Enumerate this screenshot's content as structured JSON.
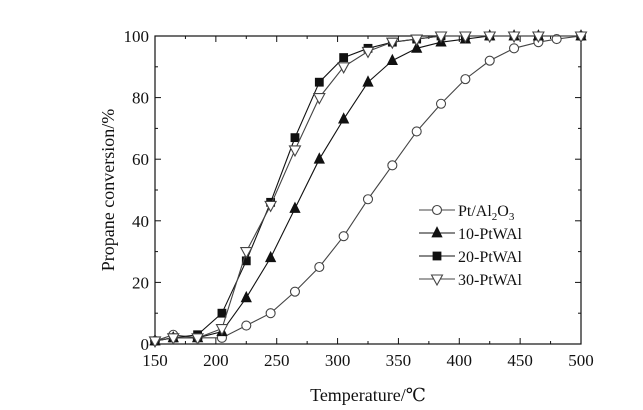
{
  "chart_data": {
    "type": "line",
    "title": "",
    "xlabel": "Temperature/℃",
    "ylabel": "Propane conversion/%",
    "xlim": [
      150,
      500
    ],
    "ylim": [
      0,
      100
    ],
    "xticks": [
      150,
      200,
      250,
      300,
      350,
      400,
      450,
      500
    ],
    "yticks": [
      0,
      20,
      40,
      60,
      80,
      100
    ],
    "grid": false,
    "legend_position": "center-right",
    "series": [
      {
        "name": "Pt/Al2O3",
        "marker": "open-circle",
        "color": "#444444",
        "x": [
          150,
          165,
          185,
          205,
          225,
          245,
          265,
          285,
          305,
          325,
          345,
          365,
          385,
          405,
          425,
          445,
          465,
          480,
          500
        ],
        "y": [
          1,
          3,
          2,
          2,
          6,
          10,
          17,
          25,
          35,
          47,
          58,
          69,
          78,
          86,
          92,
          96,
          98,
          99,
          100
        ]
      },
      {
        "name": "10-PtWAl",
        "marker": "filled-triangle",
        "color": "#111111",
        "x": [
          150,
          165,
          185,
          205,
          225,
          245,
          265,
          285,
          305,
          325,
          345,
          365,
          385,
          405,
          425,
          445,
          465,
          500
        ],
        "y": [
          1,
          2,
          2,
          4,
          15,
          28,
          44,
          60,
          73,
          85,
          92,
          96,
          98,
          99,
          100,
          100,
          100,
          100
        ]
      },
      {
        "name": "20-PtWAl",
        "marker": "filled-square",
        "color": "#111111",
        "x": [
          150,
          165,
          185,
          205,
          225,
          245,
          265,
          285,
          305,
          325,
          345,
          365,
          385,
          405,
          425,
          445,
          465,
          500
        ],
        "y": [
          1,
          2,
          3,
          10,
          27,
          46,
          67,
          85,
          93,
          96,
          98,
          99,
          100,
          100,
          100,
          100,
          100,
          100
        ]
      },
      {
        "name": "30-PtWAl",
        "marker": "open-down-triangle",
        "color": "#444444",
        "x": [
          150,
          165,
          185,
          205,
          225,
          245,
          265,
          285,
          305,
          325,
          345,
          365,
          385,
          405,
          425,
          445,
          465,
          500
        ],
        "y": [
          1,
          2,
          2,
          5,
          30,
          45,
          63,
          80,
          90,
          95,
          98,
          99,
          100,
          100,
          100,
          100,
          100,
          100
        ]
      }
    ],
    "legend_labels": [
      {
        "main": "Pt/Al",
        "sub1": "2",
        "mid": "O",
        "sub2": "3"
      },
      {
        "main": "10-PtWAl"
      },
      {
        "main": "20-PtWAl"
      },
      {
        "main": "30-PtWAl"
      }
    ]
  }
}
